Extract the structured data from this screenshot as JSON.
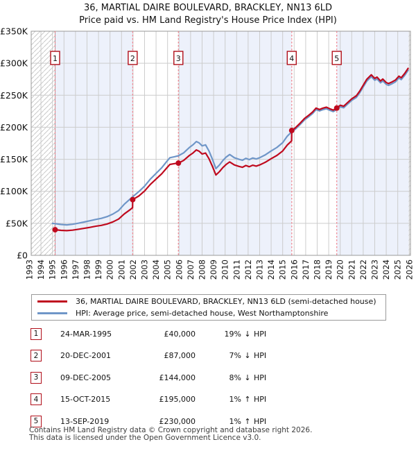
{
  "title": {
    "line1": "36, MARTIAL DAIRE BOULEVARD, BRACKLEY, NN13 6LD",
    "line2": "Price paid vs. HM Land Registry's House Price Index (HPI)"
  },
  "legend": {
    "items": [
      {
        "label": "36, MARTIAL DAIRE BOULEVARD, BRACKLEY, NN13 6LD (semi-detached house)",
        "color": "#bf0a1e"
      },
      {
        "label": "HPI: Average price, semi-detached house, West Northamptonshire",
        "color": "#6f96c8"
      }
    ]
  },
  "chart_data": {
    "type": "line",
    "title": "Price paid vs. HM Land Registry's House Price Index (HPI)",
    "x_axis": {
      "ticks": [
        1993,
        1994,
        1995,
        1996,
        1997,
        1998,
        1999,
        2000,
        2001,
        2002,
        2003,
        2004,
        2005,
        2006,
        2007,
        2008,
        2009,
        2010,
        2011,
        2012,
        2013,
        2014,
        2015,
        2016,
        2017,
        2018,
        2019,
        2020,
        2021,
        2022,
        2023,
        2024,
        2025,
        2026
      ],
      "range": [
        1992.9,
        2026.2
      ]
    },
    "y_axis": {
      "range": [
        0,
        350000
      ],
      "ticks": [
        {
          "v": 0,
          "label": "£0"
        },
        {
          "v": 50000,
          "label": "£50K"
        },
        {
          "v": 100000,
          "label": "£100K"
        },
        {
          "v": 150000,
          "label": "£150K"
        },
        {
          "v": 200000,
          "label": "£200K"
        },
        {
          "v": 250000,
          "label": "£250K"
        },
        {
          "v": 300000,
          "label": "£300K"
        },
        {
          "v": 350000,
          "label": "£350K"
        }
      ]
    },
    "grid": true,
    "legend_position": "bottom",
    "colors": {
      "price_line": "#bf0a1e",
      "hpi_line": "#6f96c8",
      "band": "#edf1fb",
      "marker_line": "#f0828c",
      "marker_box_border": "#b00d18",
      "grid": "#cccccc",
      "plot_border": "#999999",
      "hatch": "#c9c9c9"
    },
    "shaded_periods": [
      [
        1995.23,
        2001.97
      ],
      [
        2005.94,
        2015.79
      ],
      [
        2019.7,
        2025.95
      ]
    ],
    "hatched_periods": [
      [
        1992.9,
        1995.23
      ],
      [
        2025.95,
        2026.2
      ]
    ],
    "sales_markers": [
      {
        "n": "1",
        "year": 1995.23,
        "price": 40000
      },
      {
        "n": "2",
        "year": 2001.97,
        "price": 87000
      },
      {
        "n": "3",
        "year": 2005.94,
        "price": 144000
      },
      {
        "n": "4",
        "year": 2015.79,
        "price": 195000
      },
      {
        "n": "5",
        "year": 2019.7,
        "price": 230000
      }
    ],
    "series": [
      {
        "name": "HPI: Average price, semi-detached house, West Northamptonshire",
        "color": "#6f96c8",
        "points": [
          [
            1995.0,
            49800
          ],
          [
            1995.25,
            49400
          ],
          [
            1995.75,
            48200
          ],
          [
            1996.25,
            47600
          ],
          [
            1996.75,
            48500
          ],
          [
            1997.25,
            50200
          ],
          [
            1997.75,
            52000
          ],
          [
            1998.25,
            54000
          ],
          [
            1998.75,
            56000
          ],
          [
            1999.25,
            57800
          ],
          [
            1999.75,
            60500
          ],
          [
            2000.25,
            64500
          ],
          [
            2000.75,
            70000
          ],
          [
            2001.25,
            80000
          ],
          [
            2001.75,
            88000
          ],
          [
            2002.0,
            92000
          ],
          [
            2002.5,
            99500
          ],
          [
            2003.0,
            108000
          ],
          [
            2003.5,
            119000
          ],
          [
            2004.0,
            128000
          ],
          [
            2004.5,
            137000
          ],
          [
            2004.9,
            146000
          ],
          [
            2005.2,
            152500
          ],
          [
            2005.6,
            154000
          ],
          [
            2005.94,
            155500
          ],
          [
            2006.4,
            160000
          ],
          [
            2006.9,
            168500
          ],
          [
            2007.2,
            172500
          ],
          [
            2007.5,
            177700
          ],
          [
            2007.75,
            175500
          ],
          [
            2008.0,
            171000
          ],
          [
            2008.3,
            172500
          ],
          [
            2008.6,
            163000
          ],
          [
            2008.9,
            150000
          ],
          [
            2009.2,
            135500
          ],
          [
            2009.5,
            141000
          ],
          [
            2009.8,
            148000
          ],
          [
            2010.1,
            153500
          ],
          [
            2010.4,
            157500
          ],
          [
            2010.8,
            152500
          ],
          [
            2011.2,
            150000
          ],
          [
            2011.5,
            148500
          ],
          [
            2011.8,
            151500
          ],
          [
            2012.1,
            149500
          ],
          [
            2012.4,
            152000
          ],
          [
            2012.7,
            150500
          ],
          [
            2013.0,
            152500
          ],
          [
            2013.5,
            157000
          ],
          [
            2014.0,
            163000
          ],
          [
            2014.5,
            168500
          ],
          [
            2015.0,
            176000
          ],
          [
            2015.4,
            186000
          ],
          [
            2015.79,
            193000
          ],
          [
            2016.1,
            197000
          ],
          [
            2016.5,
            204000
          ],
          [
            2016.9,
            211500
          ],
          [
            2017.3,
            217000
          ],
          [
            2017.6,
            221500
          ],
          [
            2017.9,
            227500
          ],
          [
            2018.2,
            225500
          ],
          [
            2018.5,
            227500
          ],
          [
            2018.8,
            229000
          ],
          [
            2019.1,
            226500
          ],
          [
            2019.4,
            224500
          ],
          [
            2019.7,
            227700
          ],
          [
            2020.0,
            232000
          ],
          [
            2020.3,
            230500
          ],
          [
            2020.6,
            235500
          ],
          [
            2021.0,
            242000
          ],
          [
            2021.4,
            246500
          ],
          [
            2021.7,
            254000
          ],
          [
            2022.0,
            263000
          ],
          [
            2022.3,
            272000
          ],
          [
            2022.7,
            279000
          ],
          [
            2023.0,
            273500
          ],
          [
            2023.2,
            275500
          ],
          [
            2023.5,
            269500
          ],
          [
            2023.7,
            272500
          ],
          [
            2024.0,
            267000
          ],
          [
            2024.2,
            265500
          ],
          [
            2024.5,
            268000
          ],
          [
            2024.8,
            271000
          ],
          [
            2025.1,
            277000
          ],
          [
            2025.3,
            274500
          ],
          [
            2025.6,
            281000
          ],
          [
            2025.9,
            289000
          ]
        ]
      },
      {
        "name": "36, MARTIAL DAIRE BOULEVARD, BRACKLEY, NN13 6LD (semi-detached house)",
        "color": "#bf0a1e",
        "points": [
          [
            1995.23,
            40000
          ],
          [
            1995.75,
            39000
          ],
          [
            1996.25,
            38600
          ],
          [
            1996.75,
            39300
          ],
          [
            1997.25,
            40700
          ],
          [
            1997.75,
            42100
          ],
          [
            1998.25,
            43700
          ],
          [
            1998.75,
            45400
          ],
          [
            1999.25,
            46800
          ],
          [
            1999.75,
            49000
          ],
          [
            2000.25,
            52200
          ],
          [
            2000.75,
            56700
          ],
          [
            2001.25,
            64800
          ],
          [
            2001.75,
            71300
          ],
          [
            2001.96,
            74500
          ],
          [
            2001.97,
            87000
          ],
          [
            2002.5,
            92600
          ],
          [
            2003.0,
            100500
          ],
          [
            2003.5,
            110700
          ],
          [
            2004.0,
            119100
          ],
          [
            2004.5,
            127500
          ],
          [
            2004.9,
            135900
          ],
          [
            2005.2,
            141900
          ],
          [
            2005.6,
            143300
          ],
          [
            2005.94,
            144000
          ],
          [
            2006.4,
            148200
          ],
          [
            2006.9,
            156000
          ],
          [
            2007.2,
            159700
          ],
          [
            2007.5,
            164600
          ],
          [
            2007.75,
            162500
          ],
          [
            2008.0,
            158300
          ],
          [
            2008.3,
            159700
          ],
          [
            2008.6,
            150900
          ],
          [
            2008.9,
            138900
          ],
          [
            2009.2,
            125500
          ],
          [
            2009.5,
            130600
          ],
          [
            2009.8,
            137000
          ],
          [
            2010.1,
            142100
          ],
          [
            2010.4,
            145800
          ],
          [
            2010.8,
            141200
          ],
          [
            2011.2,
            138900
          ],
          [
            2011.5,
            137500
          ],
          [
            2011.8,
            140300
          ],
          [
            2012.1,
            138400
          ],
          [
            2012.4,
            140800
          ],
          [
            2012.7,
            139400
          ],
          [
            2013.0,
            141200
          ],
          [
            2013.5,
            145400
          ],
          [
            2014.0,
            150900
          ],
          [
            2014.5,
            156000
          ],
          [
            2015.0,
            163000
          ],
          [
            2015.4,
            172200
          ],
          [
            2015.78,
            178700
          ],
          [
            2015.79,
            195000
          ],
          [
            2016.1,
            199100
          ],
          [
            2016.5,
            206100
          ],
          [
            2016.9,
            213700
          ],
          [
            2017.3,
            219300
          ],
          [
            2017.6,
            223800
          ],
          [
            2017.9,
            229900
          ],
          [
            2018.2,
            227800
          ],
          [
            2018.5,
            229900
          ],
          [
            2018.8,
            231400
          ],
          [
            2019.1,
            228900
          ],
          [
            2019.4,
            226800
          ],
          [
            2019.7,
            230000
          ],
          [
            2020.0,
            234400
          ],
          [
            2020.3,
            232900
          ],
          [
            2020.6,
            237900
          ],
          [
            2021.0,
            244500
          ],
          [
            2021.4,
            249100
          ],
          [
            2021.7,
            256600
          ],
          [
            2022.0,
            265700
          ],
          [
            2022.3,
            274800
          ],
          [
            2022.7,
            281900
          ],
          [
            2023.0,
            276300
          ],
          [
            2023.2,
            278400
          ],
          [
            2023.5,
            272300
          ],
          [
            2023.7,
            275300
          ],
          [
            2024.0,
            269800
          ],
          [
            2024.2,
            268300
          ],
          [
            2024.5,
            270800
          ],
          [
            2024.8,
            273800
          ],
          [
            2025.1,
            279800
          ],
          [
            2025.3,
            277400
          ],
          [
            2025.6,
            283900
          ],
          [
            2025.9,
            292000
          ]
        ]
      }
    ]
  },
  "transactions": [
    {
      "num": "1",
      "date": "24-MAR-1995",
      "price": "£40,000",
      "pct": "19%",
      "dir": "↓",
      "ref": "HPI"
    },
    {
      "num": "2",
      "date": "20-DEC-2001",
      "price": "£87,000",
      "pct": "7%",
      "dir": "↓",
      "ref": "HPI"
    },
    {
      "num": "3",
      "date": "09-DEC-2005",
      "price": "£144,000",
      "pct": "8%",
      "dir": "↓",
      "ref": "HPI"
    },
    {
      "num": "4",
      "date": "15-OCT-2015",
      "price": "£195,000",
      "pct": "1%",
      "dir": "↑",
      "ref": "HPI"
    },
    {
      "num": "5",
      "date": "13-SEP-2019",
      "price": "£230,000",
      "pct": "1%",
      "dir": "↑",
      "ref": "HPI"
    }
  ],
  "footer": {
    "line1": "Contains HM Land Registry data © Crown copyright and database right 2026.",
    "line2": "This data is licensed under the Open Government Licence v3.0."
  }
}
